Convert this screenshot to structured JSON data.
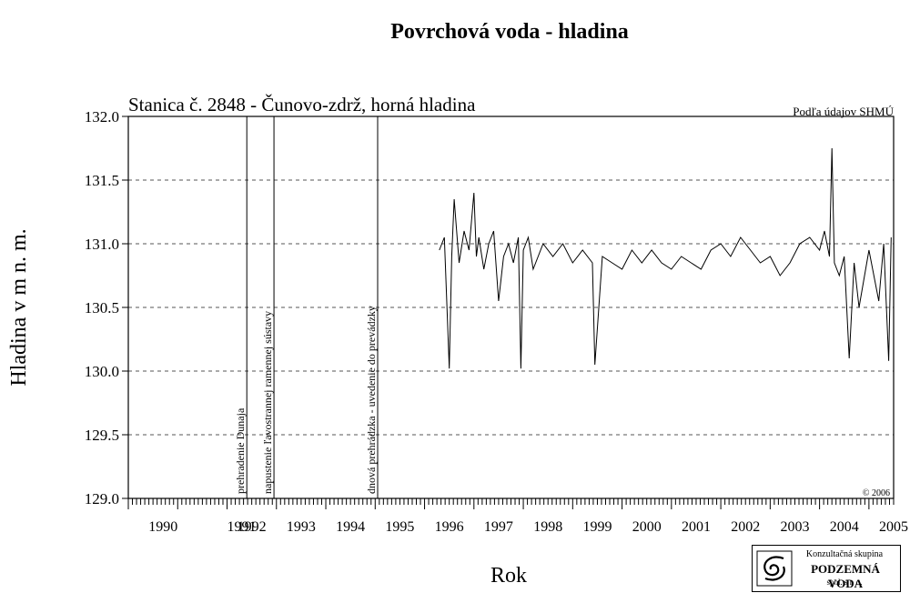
{
  "chart_data": {
    "type": "line",
    "title": "Povrchová voda - hladina",
    "subtitle": "Stanica č. 2848 - Čunovo-zdrž, horná hladina",
    "source_note": "Podľa údajov SHMÚ",
    "copyright": "© 2006",
    "xlabel": "Rok",
    "ylabel": "Hladina v m n. m.",
    "xlim": [
      1990.0,
      2005.5
    ],
    "ylim": [
      129.0,
      132.0
    ],
    "x_ticks": [
      "1990",
      "1991",
      "1992",
      "1993",
      "1994",
      "1995",
      "1996",
      "1997",
      "1998",
      "1999",
      "2000",
      "2001",
      "2002",
      "2003",
      "2004",
      "2005"
    ],
    "y_ticks": [
      "129.0",
      "129.5",
      "130.0",
      "130.5",
      "131.0",
      "131.5",
      "132.0"
    ],
    "grid": "horizontal dashed",
    "events": [
      {
        "x": 1992.4,
        "label": "prehradenie Dunaja"
      },
      {
        "x": 1992.95,
        "label": "napustenie ľavostrannej ramennej sústavy"
      },
      {
        "x": 1995.05,
        "label": "dnová prehrádzka - uvedenie do prevádzky"
      }
    ],
    "series": [
      {
        "x": [
          1996.3,
          1996.4,
          1996.5,
          1996.55,
          1996.6,
          1996.7,
          1996.8,
          1996.9,
          1997.0,
          1997.05,
          1997.1,
          1997.2,
          1997.3,
          1997.4,
          1997.5,
          1997.6,
          1997.7,
          1997.8,
          1997.9,
          1997.95,
          1998.0,
          1998.1,
          1998.2,
          1998.4,
          1998.6,
          1998.8,
          1999.0,
          1999.2,
          1999.4,
          1999.45,
          1999.6,
          1999.8,
          2000.0,
          2000.2,
          2000.4,
          2000.6,
          2000.8,
          2001.0,
          2001.2,
          2001.4,
          2001.6,
          2001.8,
          2002.0,
          2002.2,
          2002.4,
          2002.6,
          2002.8,
          2003.0,
          2003.2,
          2003.4,
          2003.6,
          2003.8,
          2004.0,
          2004.1,
          2004.2,
          2004.25,
          2004.3,
          2004.4,
          2004.5,
          2004.6,
          2004.7,
          2004.8,
          2005.0,
          2005.2,
          2005.3,
          2005.4,
          2005.45
        ],
        "values": [
          130.95,
          131.05,
          130.02,
          130.9,
          131.35,
          130.85,
          131.1,
          130.95,
          131.4,
          130.9,
          131.05,
          130.8,
          131.0,
          131.1,
          130.55,
          130.9,
          131.0,
          130.85,
          131.05,
          130.02,
          130.95,
          131.05,
          130.8,
          131.0,
          130.9,
          131.0,
          130.85,
          130.95,
          130.85,
          130.05,
          130.9,
          130.85,
          130.8,
          130.95,
          130.85,
          130.95,
          130.85,
          130.8,
          130.9,
          130.85,
          130.8,
          130.95,
          131.0,
          130.9,
          131.05,
          130.95,
          130.85,
          130.9,
          130.75,
          130.85,
          131.0,
          131.05,
          130.95,
          131.1,
          130.9,
          131.75,
          130.85,
          130.75,
          130.9,
          130.1,
          130.85,
          130.5,
          130.95,
          130.55,
          131.0,
          130.08,
          131.05
        ]
      }
    ]
  },
  "logo": {
    "line1": "Konzultačná skupina",
    "line2": "PODZEMNÁ VODA",
    "line3": "spol. s r. o."
  }
}
